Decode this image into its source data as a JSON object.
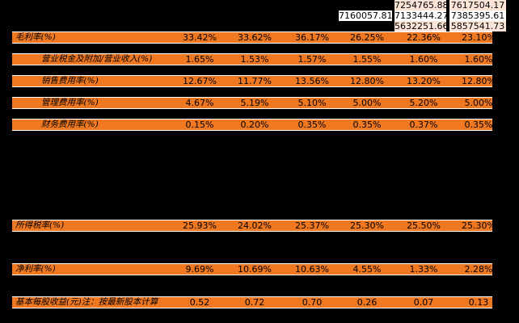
{
  "colors": {
    "background": "#000000",
    "row_fill": "#F07820",
    "header_fill": "#FCE4D6",
    "white": "#FFFFFF"
  },
  "top_rows": [
    {
      "c5": "7254765.88",
      "c6": "7617504.17"
    },
    {
      "c4": "7160057.81",
      "c5": "7133444.27",
      "c6": "7385395.61"
    },
    {
      "c5": "5632251.66",
      "c6": "5857541.73"
    }
  ],
  "rows": [
    {
      "label": "毛利率(%)",
      "values": [
        "33.42%",
        "33.62%",
        "36.17%",
        "26.25%",
        "22.36%",
        "23.10%"
      ]
    },
    {
      "label": "营业税金及附加/营业收入(%)",
      "values": [
        "1.65%",
        "1.53%",
        "1.57%",
        "1.55%",
        "1.60%",
        "1.60%"
      ]
    },
    {
      "label": "销售费用率(%)",
      "values": [
        "12.67%",
        "11.77%",
        "13.56%",
        "12.80%",
        "13.20%",
        "12.80%"
      ]
    },
    {
      "label": "管理费用率(%)",
      "values": [
        "4.67%",
        "5.19%",
        "5.10%",
        "5.00%",
        "5.20%",
        "5.00%"
      ]
    },
    {
      "label": "财务费用率(%)",
      "values": [
        "0.15%",
        "0.20%",
        "0.35%",
        "0.35%",
        "0.37%",
        "0.35%"
      ]
    },
    {
      "label": "所得税率(%)",
      "values": [
        "25.93%",
        "24.02%",
        "25.37%",
        "25.30%",
        "25.50%",
        "25.30%"
      ]
    },
    {
      "label": "净利率(%)",
      "values": [
        "9.69%",
        "10.69%",
        "10.63%",
        "4.55%",
        "1.33%",
        "2.28%"
      ]
    },
    {
      "label": "基本每股收益(元)注：按最新股本计算",
      "values": [
        "0.52",
        "0.72",
        "0.70",
        "0.26",
        "0.07",
        "0.13"
      ]
    }
  ]
}
